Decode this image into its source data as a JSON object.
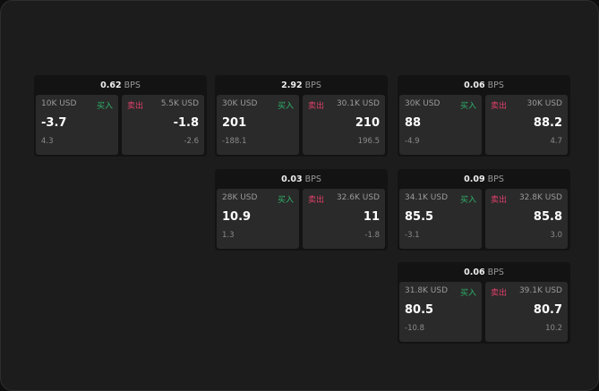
{
  "unit": "BPS",
  "buy_label": "买入",
  "sell_label": "卖出",
  "colors": {
    "buy": "#2fb36b",
    "sell": "#e0406a"
  },
  "widgets": [
    {
      "spread": "0.62",
      "buy": {
        "size": "10K USD",
        "price": "-3.7",
        "change": "4.3"
      },
      "sell": {
        "size": "5.5K USD",
        "price": "-1.8",
        "change": "-2.6"
      }
    },
    {
      "spread": "2.92",
      "buy": {
        "size": "30K USD",
        "price": "201",
        "change": "-188.1"
      },
      "sell": {
        "size": "30.1K USD",
        "price": "210",
        "change": "196.5"
      }
    },
    {
      "spread": "0.06",
      "buy": {
        "size": "30K USD",
        "price": "88",
        "change": "-4.9"
      },
      "sell": {
        "size": "30K USD",
        "price": "88.2",
        "change": "4.7"
      }
    },
    {
      "spread": "0.03",
      "buy": {
        "size": "28K USD",
        "price": "10.9",
        "change": "1.3"
      },
      "sell": {
        "size": "32.6K USD",
        "price": "11",
        "change": "-1.8"
      }
    },
    {
      "spread": "0.09",
      "buy": {
        "size": "34.1K USD",
        "price": "85.5",
        "change": "-3.1"
      },
      "sell": {
        "size": "32.8K USD",
        "price": "85.8",
        "change": "3.0"
      }
    },
    {
      "spread": "0.06",
      "buy": {
        "size": "31.8K USD",
        "price": "80.5",
        "change": "-10.8"
      },
      "sell": {
        "size": "39.1K USD",
        "price": "80.7",
        "change": "10.2"
      }
    }
  ]
}
